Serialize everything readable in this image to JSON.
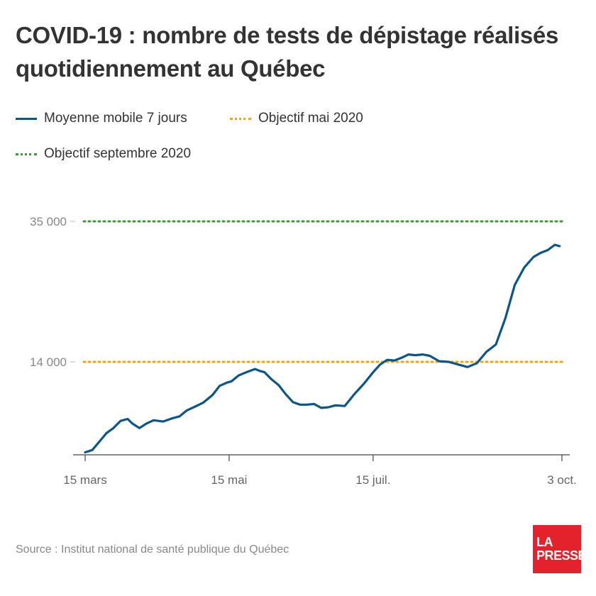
{
  "title": "COVID-19 : nombre de tests de dépistage réalisés quotidiennement au Québec",
  "source": "Source : Institut national de santé publique du Québec",
  "logo": {
    "line1": "LA",
    "line2": "PRESSE"
  },
  "colors": {
    "series": "#0b5588",
    "objective_may": "#f5a300",
    "objective_september": "#3a9a3a",
    "logo_bg": "#e4222c"
  },
  "chart_data": {
    "type": "line",
    "legend": [
      "Moyenne mobile 7 jours",
      "Objectif mai 2020",
      "Objectif septembre 2020"
    ],
    "yticks": [
      {
        "value": 14000,
        "label": "14 000"
      },
      {
        "value": 35000,
        "label": "35 000"
      }
    ],
    "xticks": [
      {
        "day": 0,
        "label": "15 mars"
      },
      {
        "day": 61,
        "label": "15 mai"
      },
      {
        "day": 122,
        "label": "15 juil."
      },
      {
        "day": 202,
        "label": "3 oct."
      }
    ],
    "xlim": [
      0,
      202
    ],
    "ylim": [
      0,
      35000
    ],
    "reference_lines": [
      {
        "name": "Objectif mai 2020",
        "value": 14000,
        "style": "dotted",
        "color": "#f5a300"
      },
      {
        "name": "Objectif septembre 2020",
        "value": 35000,
        "style": "dotted",
        "color": "#3a9a3a"
      }
    ],
    "series": [
      {
        "name": "Moyenne mobile 7 jours",
        "x": [
          0,
          3,
          6,
          9,
          12,
          15,
          18,
          20,
          23,
          26,
          29,
          33,
          37,
          40,
          43,
          46,
          50,
          54,
          57,
          60,
          62,
          65,
          69,
          72,
          74,
          76,
          79,
          82,
          85,
          88,
          91,
          94,
          97,
          100,
          103,
          106,
          110,
          114,
          118,
          122,
          125,
          128,
          131,
          134,
          137,
          140,
          143,
          146,
          150,
          154,
          158,
          162,
          166,
          170,
          174,
          178,
          182,
          186,
          190,
          193,
          196,
          199,
          201
        ],
        "y": [
          50,
          400,
          1700,
          3000,
          3800,
          4900,
          5200,
          4500,
          3800,
          4500,
          5000,
          4800,
          5300,
          5600,
          6500,
          7000,
          7700,
          8900,
          10300,
          10800,
          11000,
          11900,
          12500,
          12900,
          12600,
          12400,
          11300,
          10400,
          9000,
          7800,
          7400,
          7400,
          7500,
          6900,
          7000,
          7300,
          7200,
          9000,
          10600,
          12400,
          13600,
          14300,
          14200,
          14600,
          15100,
          15000,
          15100,
          14900,
          14100,
          14000,
          13600,
          13200,
          13800,
          15500,
          16600,
          20500,
          25500,
          28100,
          29700,
          30300,
          30700,
          31500,
          31300
        ]
      }
    ]
  }
}
